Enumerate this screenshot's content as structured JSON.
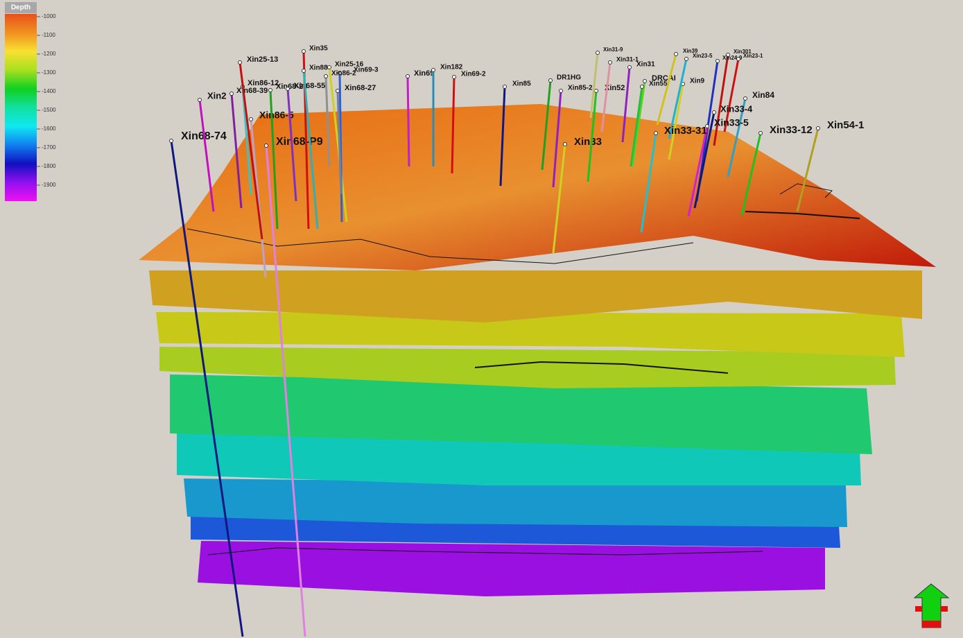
{
  "legend": {
    "title": "Depth",
    "ticks": [
      -1000,
      -1100,
      -1200,
      -1300,
      -1400,
      -1500,
      -1600,
      -1700,
      -1800,
      -1900
    ]
  },
  "wells": [
    "Xin68-74",
    "Xin68-P9",
    "Xin86-5",
    "Xin2",
    "Xin68-39",
    "Xin86-12",
    "Xin25-13",
    "Xin68-26",
    "Xin68-55",
    "Xin35",
    "Xin88",
    "Xin25-16",
    "Xin69-3",
    "Xin86-2",
    "Xin68-27",
    "Xin69",
    "Xin182",
    "Xin69-2",
    "Xin85",
    "DR1HG",
    "Xin85-2",
    "Xin33",
    "Xin52",
    "Xin31-9",
    "Xin31-1",
    "Xin31",
    "DRCAI",
    "Xin55",
    "Xin9",
    "Xin39",
    "Xin23-5",
    "Xin301",
    "Xin24-9",
    "Xin23-1",
    "Xin84",
    "Xin33-4",
    "Xin33-5",
    "Xin33-31",
    "Xin33-12",
    "Xin54-1"
  ]
}
